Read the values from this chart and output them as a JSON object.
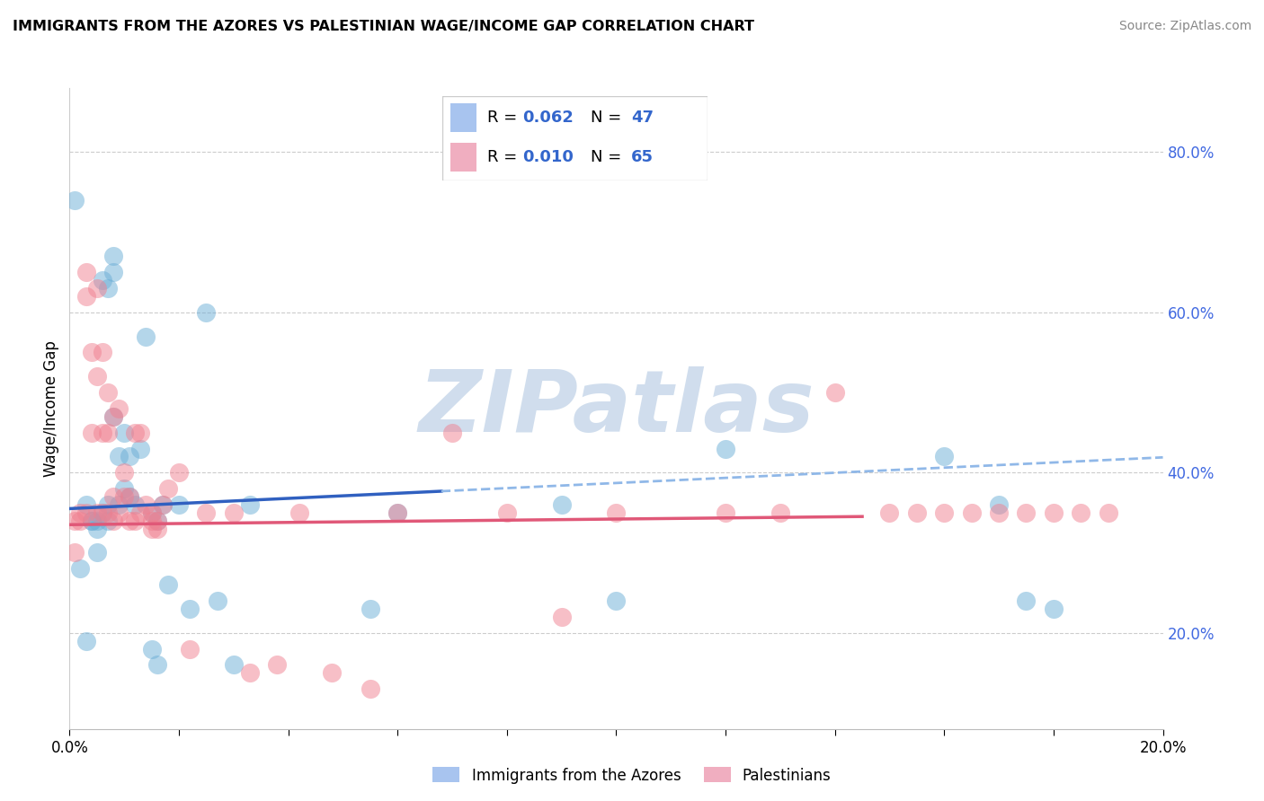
{
  "title": "IMMIGRANTS FROM THE AZORES VS PALESTINIAN WAGE/INCOME GAP CORRELATION CHART",
  "source": "Source: ZipAtlas.com",
  "ylabel": "Wage/Income Gap",
  "series1_label": "Immigrants from the Azores",
  "series2_label": "Palestinians",
  "series1_color": "#6baed6",
  "series2_color": "#f08090",
  "trend1_solid_color": "#3060c0",
  "trend1_dash_color": "#90b8e8",
  "trend2_color": "#e05878",
  "xlim": [
    0.0,
    0.2
  ],
  "ylim": [
    0.08,
    0.88
  ],
  "yticks": [
    0.2,
    0.4,
    0.6,
    0.8
  ],
  "ytick_labels": [
    "20.0%",
    "40.0%",
    "60.0%",
    "80.0%"
  ],
  "watermark": "ZIPatlas",
  "watermark_color": "#c8d8ea",
  "grid_color": "#cccccc",
  "legend_R1": "0.062",
  "legend_N1": "47",
  "legend_R2": "0.010",
  "legend_N2": "65",
  "azores_x": [
    0.001,
    0.002,
    0.003,
    0.003,
    0.004,
    0.004,
    0.005,
    0.005,
    0.005,
    0.006,
    0.006,
    0.007,
    0.007,
    0.007,
    0.008,
    0.008,
    0.008,
    0.009,
    0.009,
    0.01,
    0.01,
    0.011,
    0.011,
    0.012,
    0.013,
    0.014,
    0.015,
    0.015,
    0.016,
    0.016,
    0.017,
    0.018,
    0.02,
    0.022,
    0.025,
    0.027,
    0.03,
    0.033,
    0.055,
    0.06,
    0.09,
    0.1,
    0.12,
    0.16,
    0.17,
    0.175,
    0.18
  ],
  "azores_y": [
    0.74,
    0.28,
    0.36,
    0.19,
    0.34,
    0.34,
    0.34,
    0.33,
    0.3,
    0.64,
    0.35,
    0.63,
    0.36,
    0.34,
    0.67,
    0.65,
    0.47,
    0.42,
    0.36,
    0.45,
    0.38,
    0.42,
    0.37,
    0.36,
    0.43,
    0.57,
    0.35,
    0.18,
    0.16,
    0.34,
    0.36,
    0.26,
    0.36,
    0.23,
    0.6,
    0.24,
    0.16,
    0.36,
    0.23,
    0.35,
    0.36,
    0.24,
    0.43,
    0.42,
    0.36,
    0.24,
    0.23
  ],
  "palestinians_x": [
    0.001,
    0.001,
    0.002,
    0.002,
    0.003,
    0.003,
    0.003,
    0.004,
    0.004,
    0.005,
    0.005,
    0.005,
    0.006,
    0.006,
    0.006,
    0.007,
    0.007,
    0.007,
    0.008,
    0.008,
    0.008,
    0.009,
    0.009,
    0.01,
    0.01,
    0.011,
    0.011,
    0.012,
    0.012,
    0.013,
    0.013,
    0.014,
    0.015,
    0.015,
    0.015,
    0.016,
    0.016,
    0.017,
    0.018,
    0.02,
    0.022,
    0.025,
    0.03,
    0.033,
    0.038,
    0.042,
    0.048,
    0.055,
    0.06,
    0.07,
    0.08,
    0.09,
    0.1,
    0.12,
    0.13,
    0.14,
    0.15,
    0.155,
    0.16,
    0.165,
    0.17,
    0.175,
    0.18,
    0.185,
    0.19
  ],
  "palestinians_y": [
    0.34,
    0.3,
    0.35,
    0.34,
    0.65,
    0.62,
    0.35,
    0.55,
    0.45,
    0.63,
    0.52,
    0.35,
    0.55,
    0.45,
    0.35,
    0.5,
    0.45,
    0.35,
    0.47,
    0.37,
    0.34,
    0.48,
    0.35,
    0.4,
    0.37,
    0.37,
    0.34,
    0.45,
    0.34,
    0.45,
    0.35,
    0.36,
    0.35,
    0.34,
    0.33,
    0.34,
    0.33,
    0.36,
    0.38,
    0.4,
    0.18,
    0.35,
    0.35,
    0.15,
    0.16,
    0.35,
    0.15,
    0.13,
    0.35,
    0.45,
    0.35,
    0.22,
    0.35,
    0.35,
    0.35,
    0.5,
    0.35,
    0.35,
    0.35,
    0.35,
    0.35,
    0.35,
    0.35,
    0.35,
    0.35
  ]
}
